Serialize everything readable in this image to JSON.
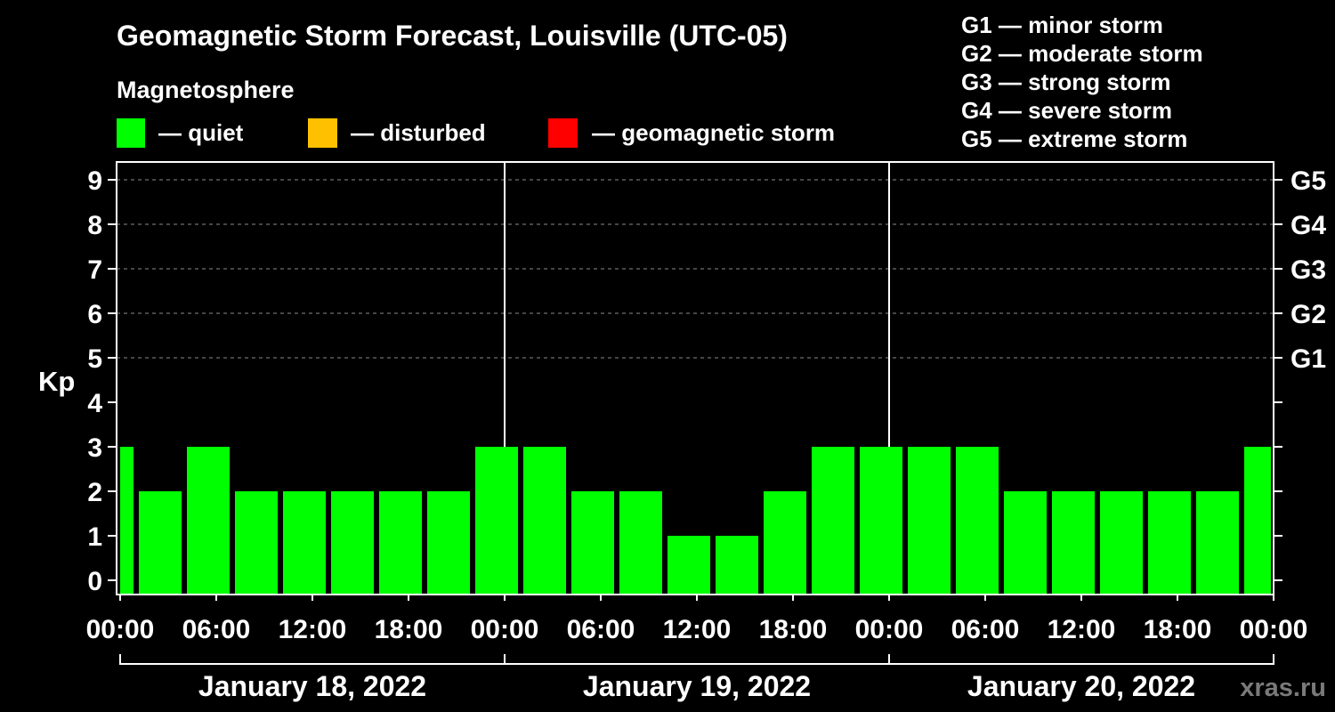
{
  "chart_data": {
    "type": "bar",
    "title": "Geomagnetic Storm Forecast, Louisville (UTC-05)",
    "legend": {
      "heading": "Magnetosphere",
      "items": [
        {
          "label": "— quiet",
          "color": "#00ff00"
        },
        {
          "label": "— disturbed",
          "color": "#ffc000"
        },
        {
          "label": "— geomagnetic storm",
          "color": "#ff0000"
        }
      ]
    },
    "storm_scale": [
      "G1 — minor storm",
      "G2 — moderate storm",
      "G3 — strong storm",
      "G4 — severe storm",
      "G5 — extreme storm"
    ],
    "ylabel": "Kp",
    "ylim": [
      0,
      9
    ],
    "yticks": [
      0,
      1,
      2,
      3,
      4,
      5,
      6,
      7,
      8,
      9
    ],
    "y2ticks": [
      {
        "kp": 5,
        "label": "G1"
      },
      {
        "kp": 6,
        "label": "G2"
      },
      {
        "kp": 7,
        "label": "G3"
      },
      {
        "kp": 8,
        "label": "G4"
      },
      {
        "kp": 9,
        "label": "G5"
      }
    ],
    "xlim": [
      0,
      72
    ],
    "xticks": [
      {
        "hour": 0,
        "label": "00:00"
      },
      {
        "hour": 6,
        "label": "06:00"
      },
      {
        "hour": 12,
        "label": "12:00"
      },
      {
        "hour": 18,
        "label": "18:00"
      },
      {
        "hour": 24,
        "label": "00:00"
      },
      {
        "hour": 30,
        "label": "06:00"
      },
      {
        "hour": 36,
        "label": "12:00"
      },
      {
        "hour": 42,
        "label": "18:00"
      },
      {
        "hour": 48,
        "label": "00:00"
      },
      {
        "hour": 54,
        "label": "06:00"
      },
      {
        "hour": 60,
        "label": "12:00"
      },
      {
        "hour": 66,
        "label": "18:00"
      },
      {
        "hour": 72,
        "label": "00:00"
      }
    ],
    "days": [
      {
        "label": "January 18, 2022",
        "start_hour": 0,
        "end_hour": 24
      },
      {
        "label": "January 19, 2022",
        "start_hour": 24,
        "end_hour": 48
      },
      {
        "label": "January 20, 2022",
        "start_hour": 48,
        "end_hour": 72
      }
    ],
    "slot_hours": 3,
    "bar_start_hours": [
      -2,
      1,
      4,
      7,
      10,
      13,
      16,
      19,
      22,
      25,
      28,
      31,
      34,
      37,
      40,
      43,
      46,
      49,
      52,
      55,
      58,
      61,
      64,
      67,
      70
    ],
    "values": [
      3,
      2,
      3,
      2,
      2,
      2,
      2,
      2,
      3,
      3,
      2,
      2,
      1,
      1,
      2,
      3,
      3,
      3,
      3,
      2,
      2,
      2,
      2,
      2,
      3
    ]
  },
  "watermark": "xras.ru"
}
